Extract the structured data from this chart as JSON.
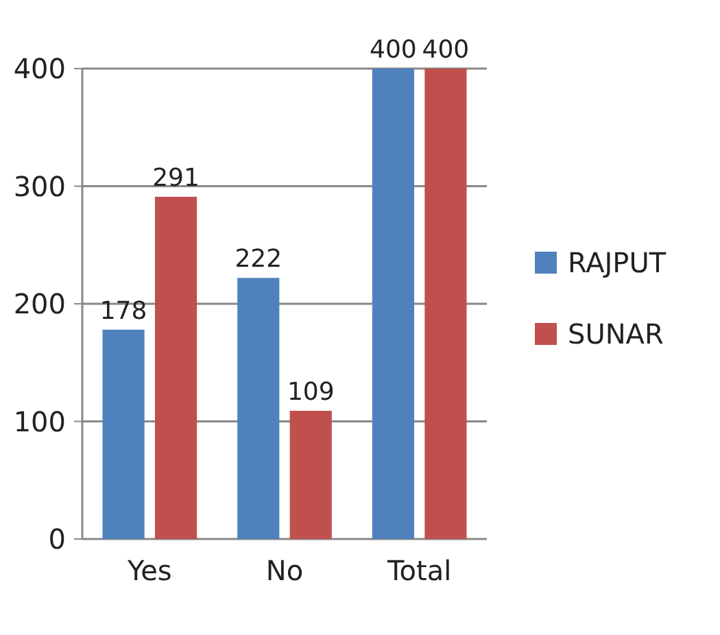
{
  "chart_data": {
    "type": "bar",
    "categories": [
      "Yes",
      "No",
      "Total"
    ],
    "series": [
      {
        "name": "RAJPUT",
        "color": "#4f81bd",
        "values": [
          178,
          222,
          400
        ]
      },
      {
        "name": "SUNAR",
        "color": "#c0504d",
        "values": [
          291,
          109,
          400
        ]
      }
    ],
    "ylim": [
      0,
      400
    ],
    "yticks": [
      0,
      100,
      200,
      300,
      400
    ],
    "grid": "y",
    "legend": "right",
    "data_labels": true
  }
}
